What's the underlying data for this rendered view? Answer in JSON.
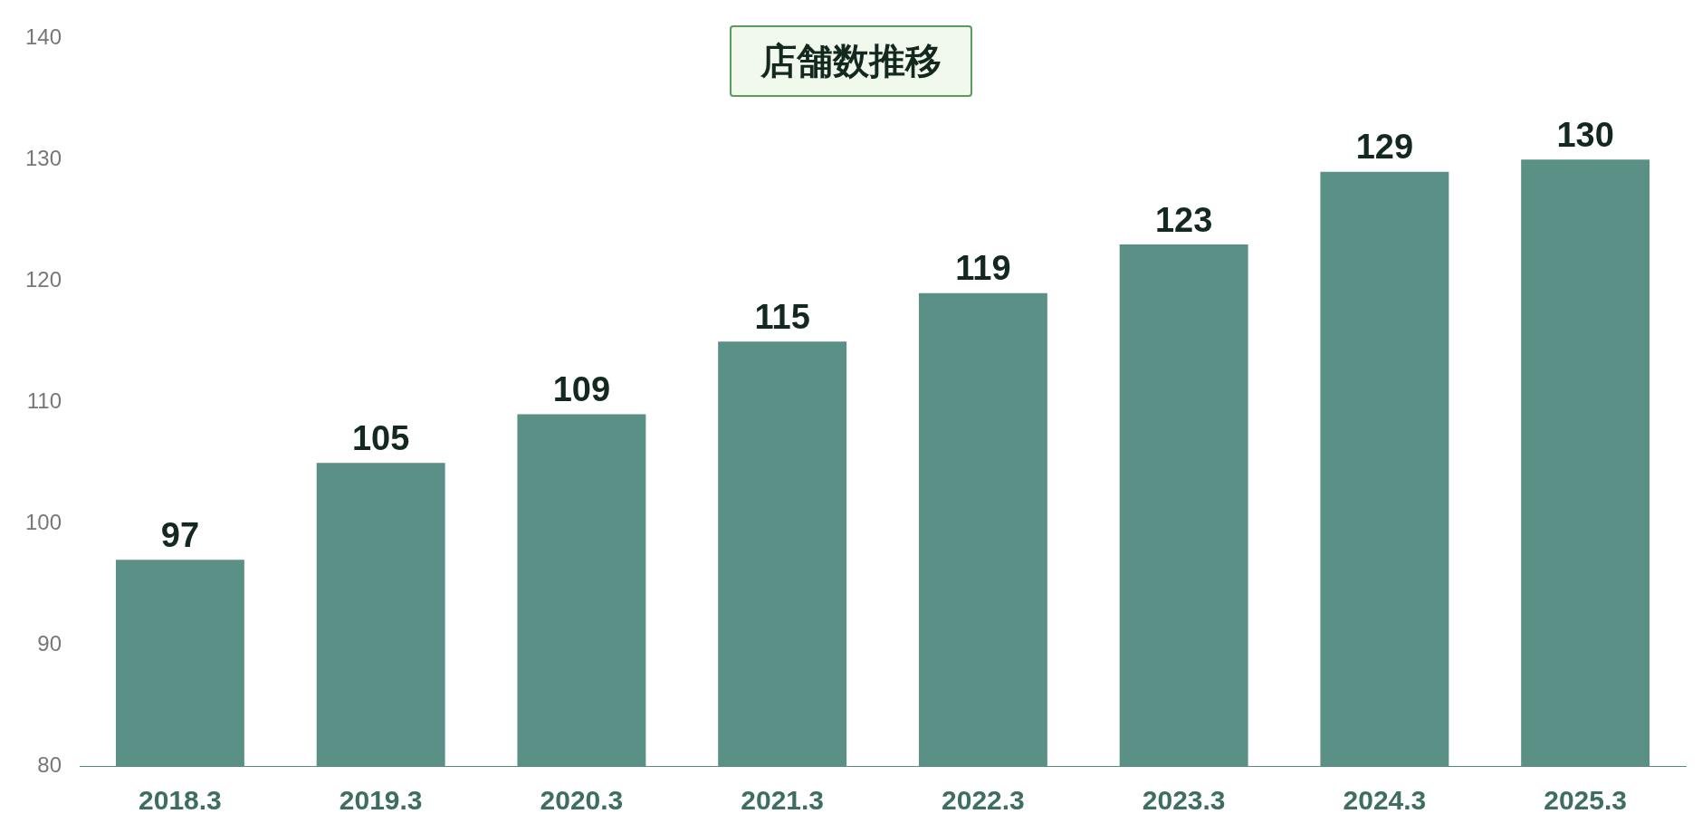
{
  "chart_data": {
    "type": "bar",
    "title": "店舗数推移",
    "categories": [
      "2018.3",
      "2019.3",
      "2020.3",
      "2021.3",
      "2022.3",
      "2023.3",
      "2024.3",
      "2025.3"
    ],
    "values": [
      97,
      105,
      109,
      115,
      119,
      123,
      129,
      130
    ],
    "color": "#5a9085",
    "ylim": [
      80,
      140
    ],
    "yticks": [
      80,
      90,
      100,
      110,
      120,
      130,
      140
    ],
    "grid": false,
    "legend": false,
    "data_labels": true
  }
}
